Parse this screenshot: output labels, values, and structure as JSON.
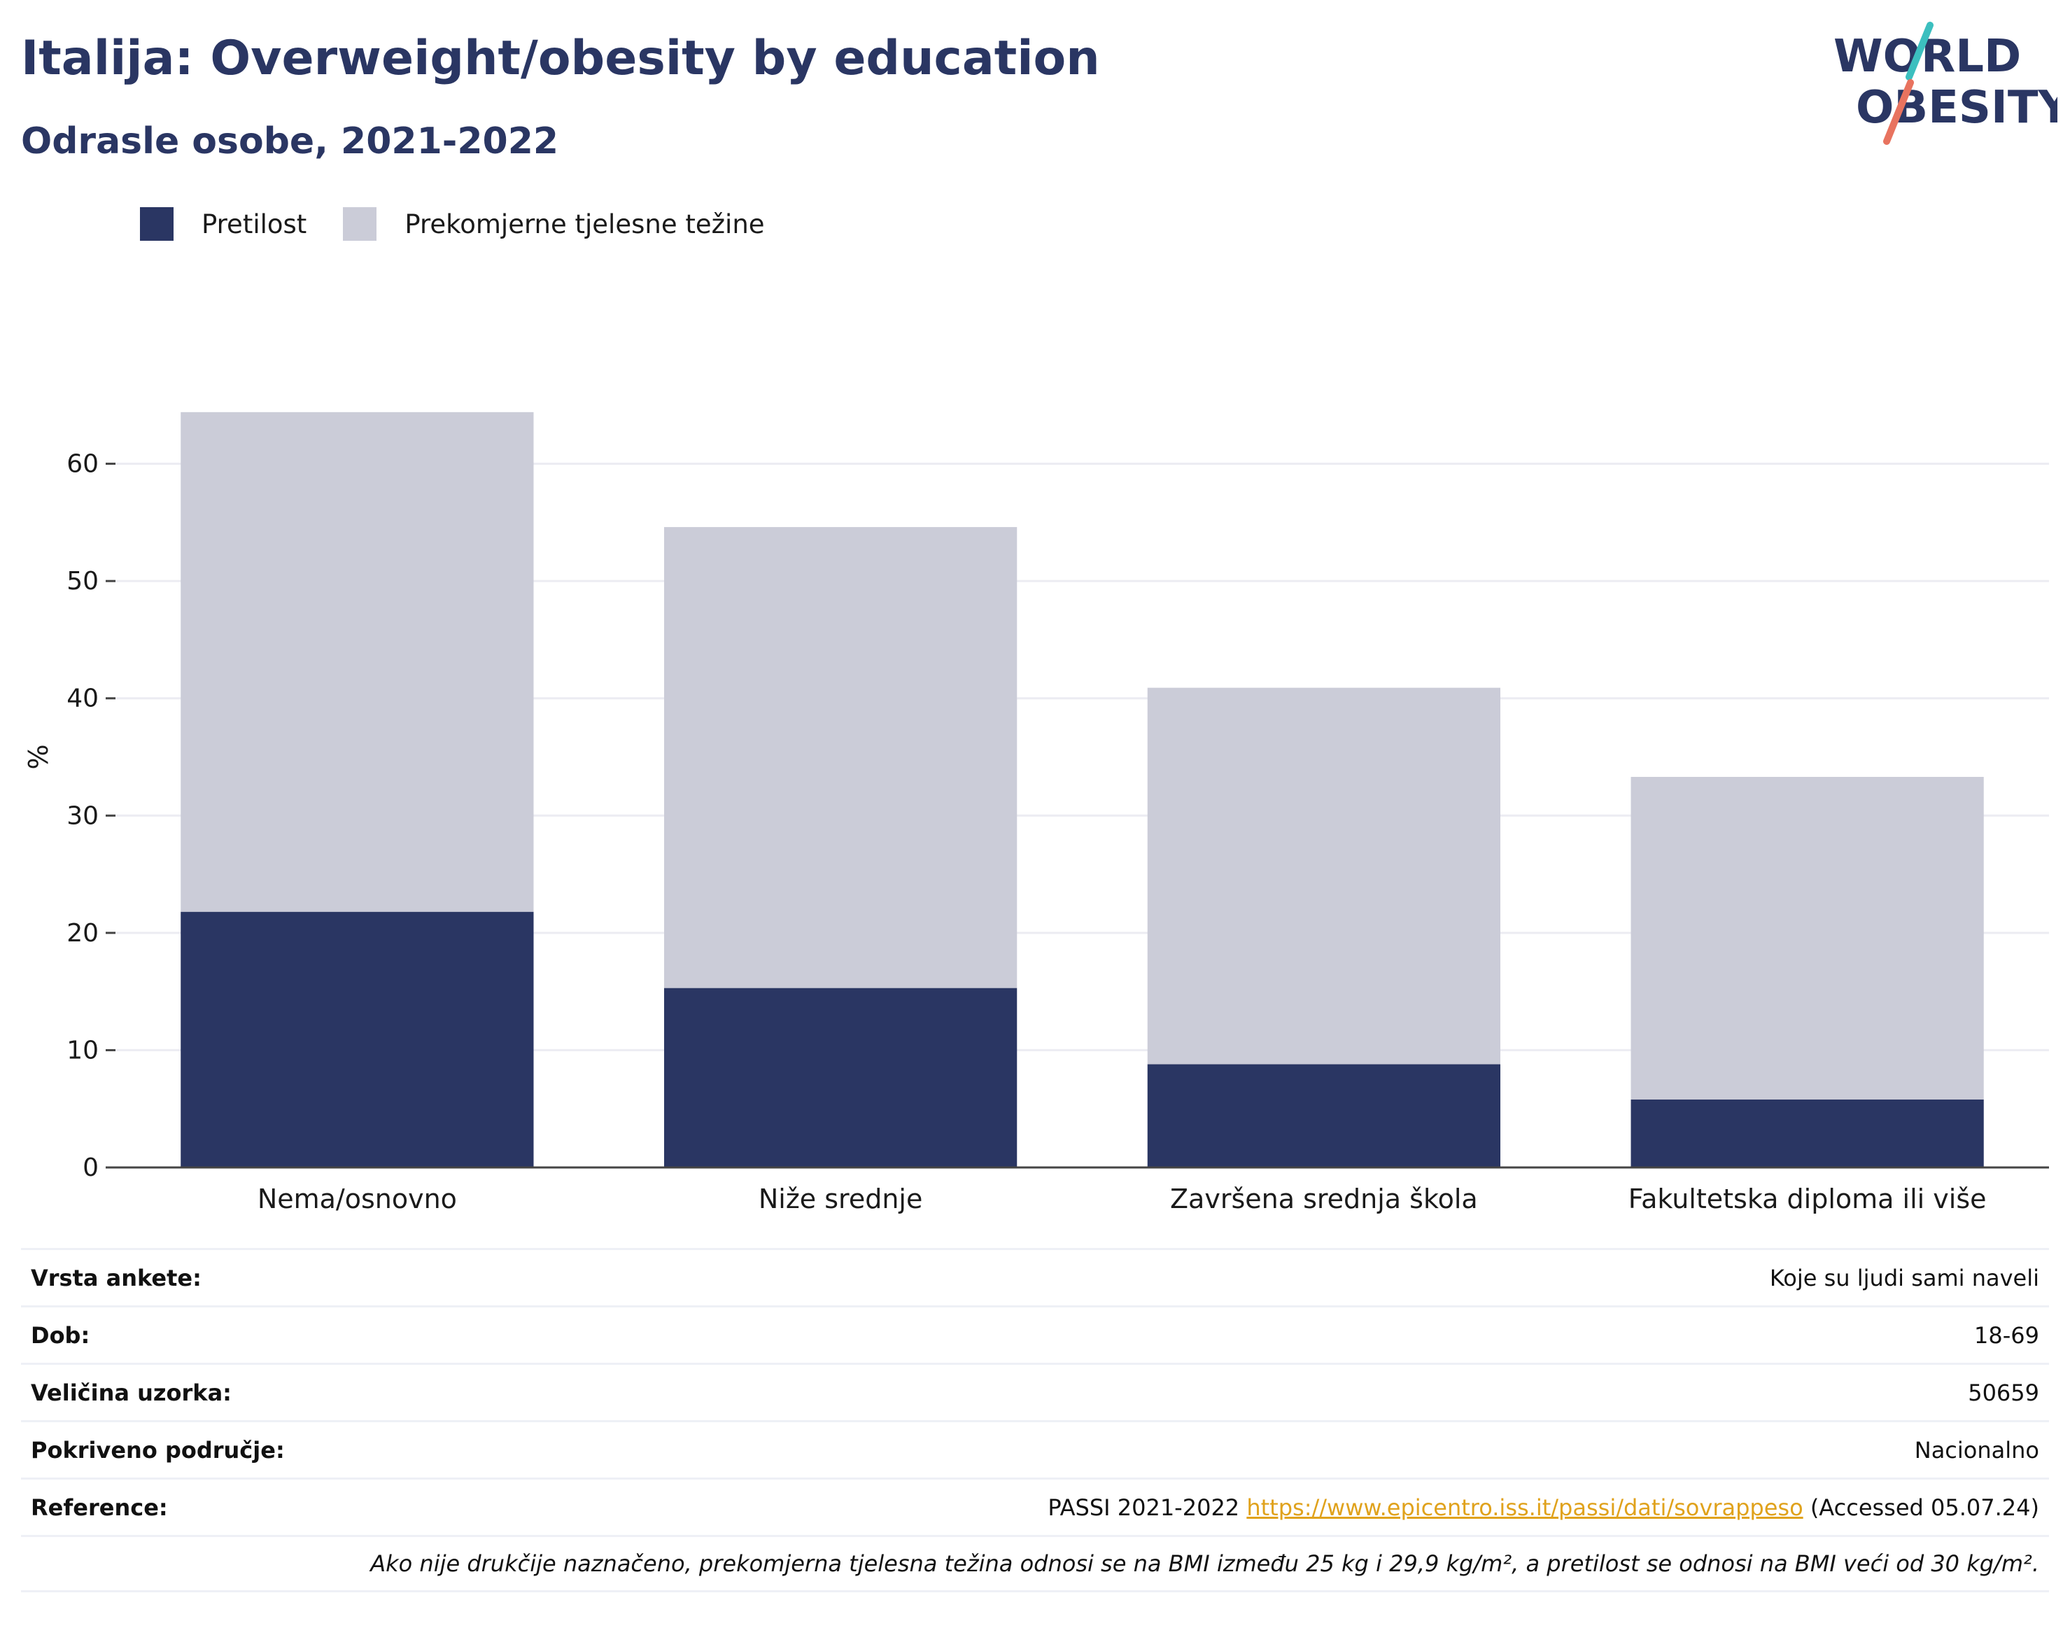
{
  "title": "Italija: Overweight/obesity by education",
  "subtitle": "Odrasle osobe, 2021-2022",
  "logo": {
    "line1": "WORLD",
    "line2": "OBESITY"
  },
  "colors": {
    "obesity": "#2a3663",
    "overweight": "#cbccd8",
    "accent_teal": "#3cbfbf",
    "accent_coral": "#e8735f",
    "link": "#e0a21c"
  },
  "chart_data": {
    "type": "bar",
    "stacked": true,
    "categories": [
      "Nema/osnovno",
      "Niže srednje",
      "Završena srednja škola",
      "Fakultetska diploma ili više"
    ],
    "series": [
      {
        "name": "Pretilost",
        "values": [
          21.8,
          15.3,
          8.8,
          5.8
        ]
      },
      {
        "name": "Prekomjerne tjelesne težine",
        "values": [
          42.6,
          39.3,
          32.1,
          27.5
        ]
      }
    ],
    "ylabel": "%",
    "ylim": [
      0,
      70
    ],
    "yticks": [
      0,
      10,
      20,
      30,
      40,
      50,
      60
    ],
    "grid": true,
    "legend": "top-left"
  },
  "info": {
    "rows": [
      {
        "label": "Vrsta ankete:",
        "value": "Koje su ljudi sami naveli"
      },
      {
        "label": "Dob:",
        "value": "18-69"
      },
      {
        "label": "Veličina uzorka:",
        "value": "50659"
      },
      {
        "label": "Pokriveno područje:",
        "value": "Nacionalno"
      }
    ],
    "reference": {
      "label": "Reference:",
      "prefix": "PASSI 2021-2022",
      "url": "https://www.epicentro.iss.it/passi/dati/sovrappeso",
      "suffix": "(Accessed 05.07.24)"
    },
    "note": "Ako nije drukčije naznačeno, prekomjerna tjelesna težina odnosi se na BMI između 25 kg i 29,9 kg/m², a pretilost se odnosi na BMI veći od 30 kg/m²."
  }
}
